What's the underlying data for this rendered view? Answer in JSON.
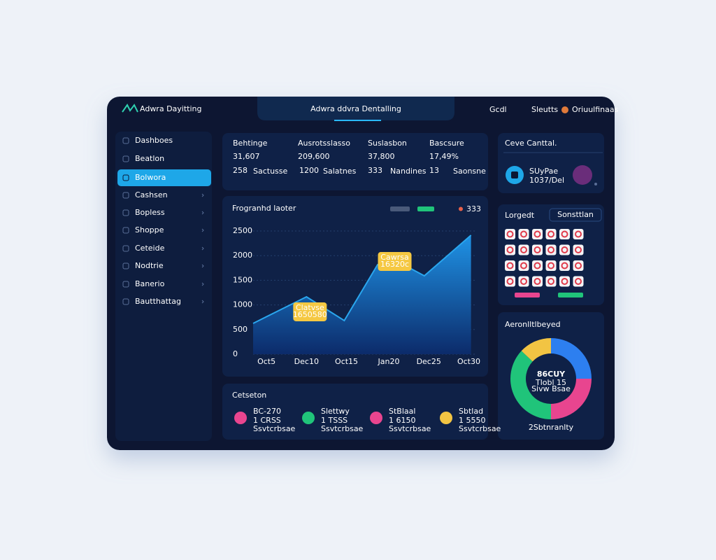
{
  "header": {
    "logo": "Adwra Dayitting",
    "title": "Adwra ddvra Dentalling",
    "menu": [
      "Gcdl",
      "Sleutts"
    ],
    "user": "Oriuulfinaas"
  },
  "sidebar": {
    "items": [
      "Dashboes",
      "Beatlon",
      "Bolwora",
      "Cashsen",
      "Bopless",
      "Shoppe",
      "Ceteide",
      "Nodtrie",
      "Banerio",
      "Bautthattag"
    ],
    "active": 2
  },
  "stats": [
    {
      "label": "Behtinge",
      "value": "31,607",
      "sub": "258",
      "tag": "Sactusse",
      "tag_color": "#1fc47a"
    },
    {
      "label": "Ausrotsslasso",
      "value": "209,600",
      "sub": "1200",
      "tag": "Salatnes",
      "tag_color": "#2d8ff0"
    },
    {
      "label": "Suslasbon",
      "value": "37,800",
      "sub": "333",
      "tag": "Nandines",
      "tag_color": "#e8458f"
    },
    {
      "label": "Bascsure",
      "value": "17,49%",
      "sub": "13",
      "tag": "Saonsne",
      "tag_color": "#e8458f"
    }
  ],
  "chart_data": [
    {
      "type": "area",
      "title": "Frogranhd laoter",
      "x": [
        0,
        24,
        41,
        56,
        64,
        77,
        98
      ],
      "xlim": [
        0,
        100
      ],
      "xticks": [
        {
          "value": 6,
          "label": "Oct5"
        },
        {
          "value": 24,
          "label": "Dec10"
        },
        {
          "value": 42,
          "label": "Oct15"
        },
        {
          "value": 61,
          "label": "Jan20"
        },
        {
          "value": 79,
          "label": "Dec25"
        },
        {
          "value": 97,
          "label": "Oct30"
        }
      ],
      "series": [
        {
          "name": "333",
          "color": "#2aa6ee",
          "values": [
            625,
            1165,
            682,
            1818,
            1903,
            1591,
            2415
          ]
        }
      ],
      "ylim": [
        0,
        2500
      ],
      "yticks": [
        0,
        500,
        1000,
        1500,
        2000,
        2500
      ],
      "grid": true,
      "annotations": [
        {
          "point": 1,
          "lines": [
            "Clatvse",
            "1650580"
          ]
        },
        {
          "point": 4,
          "lines": [
            "Cawrsa",
            "16320c"
          ]
        }
      ]
    },
    {
      "type": "pie",
      "title": "Aeronlltlbeyed",
      "center_label": "86CUY",
      "center_sub": [
        "Tlobl 15",
        "Sivw Bsae"
      ],
      "footer": "2Sbtnranlty",
      "values": [
        25,
        25,
        37,
        13
      ],
      "colors": [
        "#2d7ff0",
        "#e8458f",
        "#20c47a",
        "#f2c443"
      ]
    }
  ],
  "bottom": {
    "title": "Cetseton",
    "items": [
      {
        "name": "BC-270",
        "value": "1 CRSS",
        "note": "Ssvtcrbsae",
        "color": "#e8458f"
      },
      {
        "name": "Slettwy",
        "value": "1 TSSS",
        "note": "Ssvtcrbsae",
        "color": "#20c47a"
      },
      {
        "name": "StBlaal",
        "value": "1 6150",
        "note": "Ssvtcrbsae",
        "color": "#e8458f"
      },
      {
        "name": "Sbtlad",
        "value": "1 5550",
        "note": "Ssvtcrbsae",
        "color": "#f2c443"
      }
    ]
  },
  "profile": {
    "title": "Ceve Canttal.",
    "name": "SUyPae",
    "sub": "1037/Del"
  },
  "grid_panel": {
    "title": "Lorgedt",
    "search": "Sonsttlan"
  }
}
